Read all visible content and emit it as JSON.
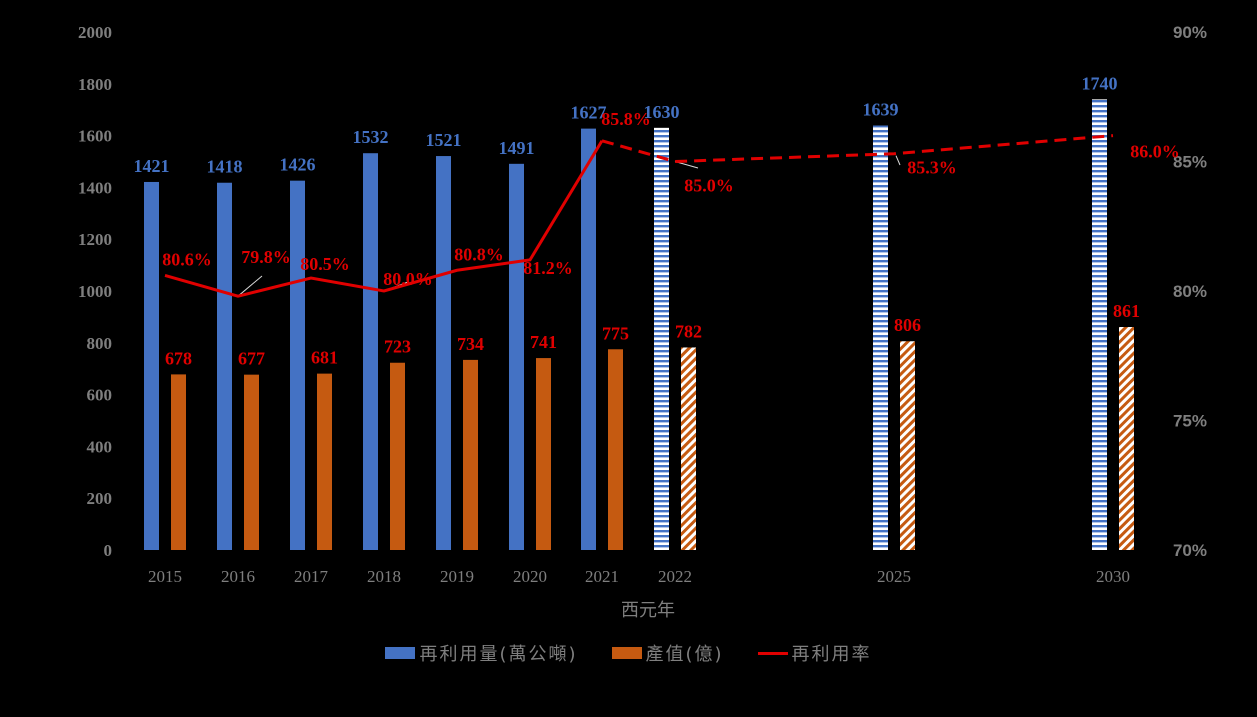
{
  "chart_data": {
    "type": "bar",
    "xlabel": "西元年",
    "categories": [
      "2015",
      "2016",
      "2017",
      "2018",
      "2019",
      "2020",
      "2021",
      "2022",
      "2025",
      "2030"
    ],
    "series": [
      {
        "name": "再利用量(萬公噸)",
        "type": "bar",
        "axis": "left",
        "color": "#4472c4",
        "values": [
          1421,
          1418,
          1426,
          1532,
          1521,
          1491,
          1627,
          1630,
          1639,
          1740
        ],
        "labels": [
          "1421",
          "1418",
          "1426",
          "1532",
          "1521",
          "1491",
          "1627",
          "1630",
          "1639",
          "1740"
        ],
        "projected_from": "2022"
      },
      {
        "name": "產值(億)",
        "type": "bar",
        "axis": "left",
        "color": "#c55a11",
        "values": [
          678,
          677,
          681,
          723,
          734,
          741,
          775,
          782,
          806,
          861
        ],
        "labels": [
          "678",
          "677",
          "681",
          "723",
          "734",
          "741",
          "775",
          "782",
          "806",
          "861"
        ],
        "projected_from": "2022"
      },
      {
        "name": "再利用率",
        "type": "line",
        "axis": "right",
        "color": "#e00000",
        "values": [
          80.6,
          79.8,
          80.5,
          80.0,
          80.8,
          81.2,
          85.8,
          85.0,
          85.3,
          86.0
        ],
        "labels": [
          "80.6%",
          "79.8%",
          "80.5%",
          "80.0%",
          "80.8%",
          "81.2%",
          "85.8%",
          "85.0%",
          "85.3%",
          "86.0%"
        ],
        "dashed_from": "2021"
      }
    ],
    "y_left": {
      "min": 0,
      "max": 2000,
      "ticks": [
        "0",
        "200",
        "400",
        "600",
        "800",
        "1000",
        "1200",
        "1400",
        "1600",
        "1800",
        "2000"
      ]
    },
    "y_right": {
      "min": 70,
      "max": 90,
      "ticks": [
        "70%",
        "75%",
        "80%",
        "85%",
        "90%"
      ]
    },
    "legend_position": "bottom",
    "grid": false
  }
}
